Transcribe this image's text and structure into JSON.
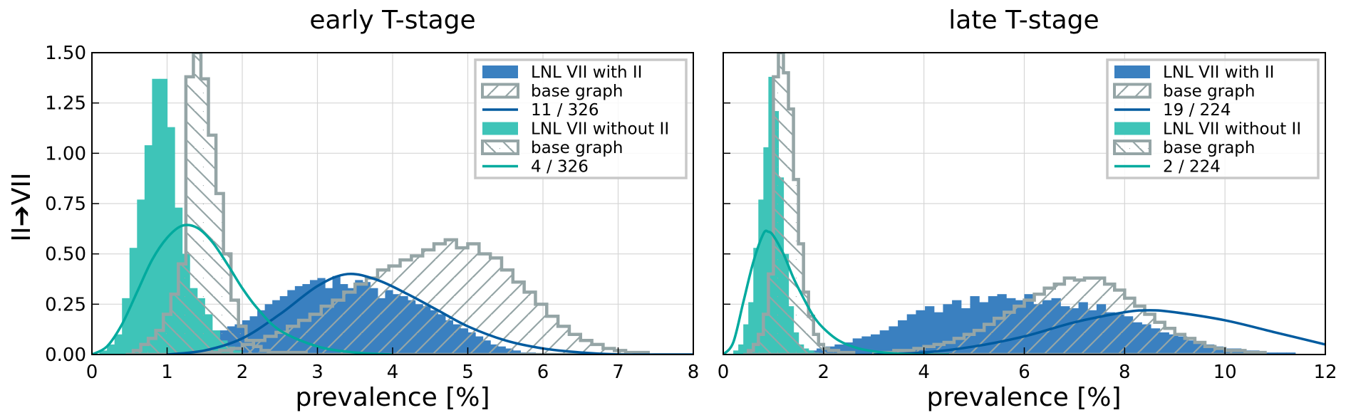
{
  "figure": {
    "ylabel": "II➔VII"
  },
  "colors": {
    "blue": "#005b9f",
    "blue_hist": "#3a80c0",
    "teal": "#00aa9e",
    "teal_hist": "#3ec4b8",
    "gray": "#95a5a6",
    "grid": "#d6d6d6"
  },
  "chart_data": [
    {
      "type": "histogram",
      "title": "early T-stage",
      "xlabel": "prevalence [%]",
      "ylabel": "II➔VII",
      "xlim": [
        0,
        8
      ],
      "ylim": [
        0,
        1.5
      ],
      "xticks": [
        "0",
        "1",
        "2",
        "3",
        "4",
        "5",
        "6",
        "7",
        "8"
      ],
      "yticks": [
        "0.00",
        "0.25",
        "0.50",
        "0.75",
        "1.00",
        "1.25",
        "1.50"
      ],
      "grid": true,
      "legend_position": "top-right",
      "legend": [
        "LNL VII with II",
        "base graph",
        "11 / 326",
        "LNL VII without II",
        "base graph",
        "4 / 326"
      ],
      "series": [
        {
          "name": "LNL VII with II",
          "kind": "filled_hist",
          "color": "blue_hist",
          "bin_start": 1.2,
          "bin_width": 0.1,
          "values": [
            0.01,
            0.02,
            0.04,
            0.07,
            0.1,
            0.12,
            0.14,
            0.15,
            0.17,
            0.19,
            0.22,
            0.25,
            0.27,
            0.29,
            0.32,
            0.34,
            0.35,
            0.37,
            0.38,
            0.33,
            0.39,
            0.35,
            0.33,
            0.37,
            0.36,
            0.33,
            0.28,
            0.32,
            0.3,
            0.29,
            0.27,
            0.25,
            0.24,
            0.22,
            0.2,
            0.17,
            0.15,
            0.13,
            0.11,
            0.09,
            0.07,
            0.05,
            0.04,
            0.03,
            0.02,
            0.01,
            0.01
          ]
        },
        {
          "name": "base graph",
          "kind": "hatched_step",
          "pair": 1,
          "color": "gray",
          "hatch": "//",
          "bin_start": 1.4,
          "bin_width": 0.15,
          "values": [
            0.01,
            0.01,
            0.02,
            0.03,
            0.05,
            0.07,
            0.09,
            0.11,
            0.14,
            0.17,
            0.2,
            0.24,
            0.27,
            0.31,
            0.35,
            0.38,
            0.42,
            0.44,
            0.47,
            0.49,
            0.52,
            0.55,
            0.57,
            0.53,
            0.55,
            0.5,
            0.48,
            0.42,
            0.36,
            0.31,
            0.25,
            0.19,
            0.14,
            0.1,
            0.07,
            0.05,
            0.03,
            0.02,
            0.01,
            0.01
          ]
        },
        {
          "name": "11 / 326",
          "kind": "curve",
          "color": "blue",
          "x": [
            1.0,
            1.5,
            2.0,
            2.5,
            3.0,
            3.4,
            3.8,
            4.2,
            4.6,
            5.0,
            5.5,
            6.0,
            6.5,
            7.0,
            7.5,
            8.0
          ],
          "values": [
            0.0,
            0.02,
            0.08,
            0.2,
            0.34,
            0.4,
            0.37,
            0.3,
            0.22,
            0.14,
            0.07,
            0.03,
            0.01,
            0.0,
            0.0,
            0.0
          ]
        },
        {
          "name": "LNL VII without II",
          "kind": "filled_hist",
          "color": "teal_hist",
          "bin_start": 0.1,
          "bin_width": 0.1,
          "values": [
            0.02,
            0.05,
            0.1,
            0.28,
            0.53,
            0.77,
            1.04,
            1.37,
            1.37,
            1.13,
            0.73,
            0.5,
            0.33,
            0.28,
            0.2,
            0.12,
            0.07,
            0.04,
            0.02
          ]
        },
        {
          "name": "base graph",
          "kind": "hatched_step",
          "pair": 2,
          "color": "gray",
          "hatch": "\\\\",
          "bin_start": 0.45,
          "bin_width": 0.1,
          "values": [
            0.0,
            0.02,
            0.05,
            0.08,
            0.12,
            0.2,
            0.3,
            0.45,
            1.38,
            1.5,
            1.37,
            1.09,
            0.8,
            0.5,
            0.27,
            0.14,
            0.07,
            0.04,
            0.02,
            0.01,
            0.01,
            0.01,
            0.01,
            0.01
          ]
        },
        {
          "name": "4 / 326",
          "kind": "curve",
          "color": "teal",
          "x": [
            0.0,
            0.2,
            0.4,
            0.6,
            0.8,
            1.0,
            1.2,
            1.4,
            1.6,
            1.8,
            2.0,
            2.2,
            2.5,
            3.0,
            3.5,
            4.0
          ],
          "values": [
            0.0,
            0.04,
            0.15,
            0.31,
            0.47,
            0.58,
            0.64,
            0.63,
            0.56,
            0.45,
            0.33,
            0.23,
            0.12,
            0.04,
            0.01,
            0.0
          ]
        }
      ]
    },
    {
      "type": "histogram",
      "title": "late T-stage",
      "xlabel": "prevalence [%]",
      "xlim": [
        0,
        12
      ],
      "ylim": [
        0,
        1.5
      ],
      "xticks": [
        "0",
        "2",
        "4",
        "6",
        "8",
        "10",
        "12"
      ],
      "grid": true,
      "legend_position": "top-right",
      "legend": [
        "LNL VII with II",
        "base graph",
        "19 / 224",
        "LNL VII without II",
        "base graph",
        "2 / 224"
      ],
      "series": [
        {
          "name": "LNL VII with II",
          "kind": "filled_hist",
          "color": "blue_hist",
          "bin_start": 1.5,
          "bin_width": 0.18,
          "values": [
            0.01,
            0.02,
            0.03,
            0.04,
            0.05,
            0.06,
            0.08,
            0.09,
            0.1,
            0.12,
            0.14,
            0.17,
            0.2,
            0.22,
            0.24,
            0.21,
            0.25,
            0.27,
            0.23,
            0.29,
            0.26,
            0.29,
            0.3,
            0.28,
            0.27,
            0.3,
            0.25,
            0.27,
            0.28,
            0.24,
            0.23,
            0.26,
            0.22,
            0.25,
            0.21,
            0.2,
            0.19,
            0.16,
            0.15,
            0.13,
            0.11,
            0.1,
            0.09,
            0.07,
            0.06,
            0.05,
            0.04,
            0.03,
            0.03,
            0.02,
            0.02,
            0.01,
            0.01,
            0.01,
            0.01
          ]
        },
        {
          "name": "base graph",
          "kind": "hatched_step",
          "pair": 1,
          "color": "gray",
          "hatch": "//",
          "bin_start": 3.0,
          "bin_width": 0.2,
          "values": [
            0.01,
            0.01,
            0.02,
            0.02,
            0.03,
            0.04,
            0.05,
            0.06,
            0.08,
            0.1,
            0.12,
            0.15,
            0.18,
            0.21,
            0.24,
            0.27,
            0.3,
            0.33,
            0.35,
            0.38,
            0.37,
            0.38,
            0.38,
            0.35,
            0.32,
            0.28,
            0.24,
            0.2,
            0.16,
            0.13,
            0.1,
            0.08,
            0.06,
            0.04,
            0.03,
            0.02,
            0.02,
            0.01,
            0.01
          ]
        },
        {
          "name": "19 / 224",
          "kind": "curve",
          "color": "blue",
          "x": [
            3.0,
            4.0,
            5.0,
            6.0,
            7.0,
            8.0,
            8.5,
            9.0,
            10.0,
            11.0,
            12.0
          ],
          "values": [
            0.0,
            0.01,
            0.04,
            0.09,
            0.16,
            0.21,
            0.22,
            0.21,
            0.17,
            0.11,
            0.05
          ]
        },
        {
          "name": "LNL VII without II",
          "kind": "filled_hist",
          "color": "teal_hist",
          "bin_start": 0.2,
          "bin_width": 0.1,
          "values": [
            0.02,
            0.05,
            0.15,
            0.26,
            0.53,
            0.77,
            1.03,
            1.38,
            1.21,
            0.88,
            0.5,
            0.24,
            0.11,
            0.05,
            0.03,
            0.02,
            0.01
          ]
        },
        {
          "name": "base graph",
          "kind": "hatched_step",
          "pair": 2,
          "color": "gray",
          "hatch": "\\\\",
          "bin_start": 0.4,
          "bin_width": 0.1,
          "values": [
            0.0,
            0.02,
            0.05,
            0.1,
            0.2,
            0.4,
            1.38,
            1.5,
            1.4,
            1.22,
            0.87,
            0.55,
            0.31,
            0.19,
            0.1,
            0.05,
            0.03,
            0.02,
            0.02,
            0.01,
            0.01,
            0.01
          ]
        },
        {
          "name": "2 / 224",
          "kind": "curve",
          "color": "teal",
          "x": [
            0.0,
            0.2,
            0.4,
            0.6,
            0.8,
            0.9,
            1.0,
            1.2,
            1.4,
            1.6,
            1.8,
            2.0,
            2.3,
            2.7,
            3.2,
            3.8,
            4.5
          ],
          "values": [
            0.0,
            0.06,
            0.26,
            0.46,
            0.6,
            0.61,
            0.59,
            0.5,
            0.38,
            0.28,
            0.19,
            0.13,
            0.07,
            0.03,
            0.01,
            0.0,
            0.0
          ]
        }
      ]
    }
  ]
}
